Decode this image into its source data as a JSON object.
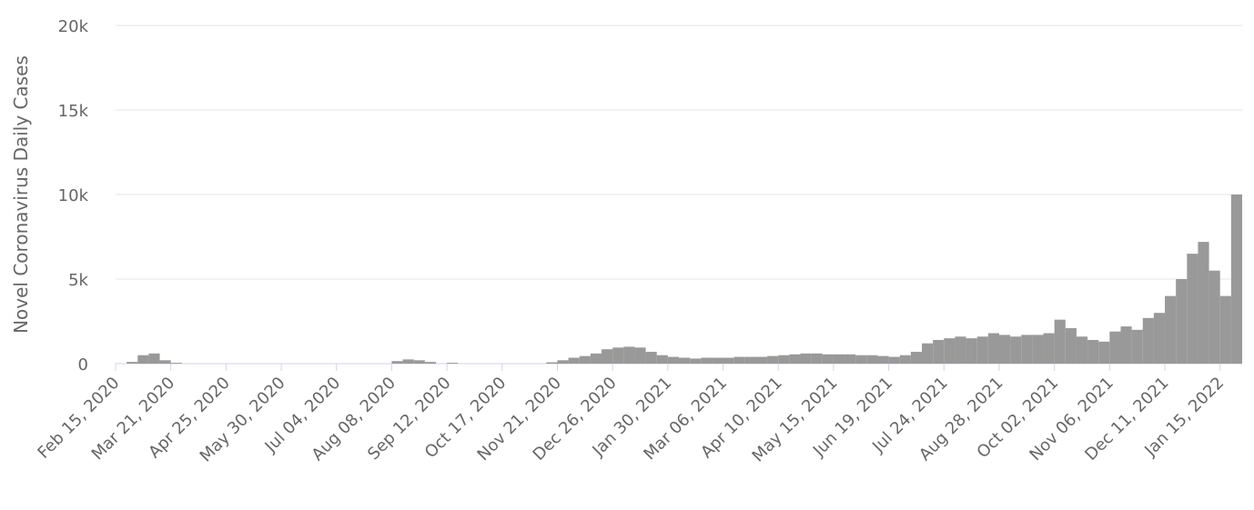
{
  "chart_data": {
    "type": "bar",
    "y_label": "Novel Coronavirus Daily Cases",
    "color": "#999999",
    "categories": [
      "Feb 15, 2020",
      null,
      null,
      null,
      null,
      "Mar 21, 2020",
      null,
      null,
      null,
      null,
      "Apr 25, 2020",
      null,
      null,
      null,
      null,
      "May 30, 2020",
      null,
      null,
      null,
      null,
      "Jul 04, 2020",
      null,
      null,
      null,
      null,
      "Aug 08, 2020",
      null,
      null,
      null,
      null,
      "Sep 12, 2020",
      null,
      null,
      null,
      null,
      "Oct 17, 2020",
      null,
      null,
      null,
      null,
      "Nov 21, 2020",
      null,
      null,
      null,
      null,
      "Dec 26, 2020",
      null,
      null,
      null,
      null,
      "Jan 30, 2021",
      null,
      null,
      null,
      null,
      "Mar 06, 2021",
      null,
      null,
      null,
      null,
      "Apr 10, 2021",
      null,
      null,
      null,
      null,
      "May 15, 2021",
      null,
      null,
      null,
      null,
      "Jun 19, 2021",
      null,
      null,
      null,
      null,
      "Jul 24, 2021",
      null,
      null,
      null,
      null,
      "Aug 28, 2021",
      null,
      null,
      null,
      null,
      "Oct 02, 2021",
      null,
      null,
      null,
      null,
      "Nov 06, 2021",
      null,
      null,
      null,
      null,
      "Dec 11, 2021",
      null,
      null,
      null,
      null,
      "Jan 15, 2022",
      null
    ],
    "values": [
      0,
      100,
      500,
      600,
      200,
      50,
      0,
      0,
      0,
      0,
      0,
      0,
      0,
      0,
      0,
      0,
      0,
      0,
      0,
      0,
      0,
      0,
      0,
      0,
      0,
      150,
      250,
      200,
      100,
      0,
      50,
      0,
      0,
      0,
      0,
      0,
      0,
      0,
      0,
      80,
      200,
      350,
      450,
      600,
      850,
      950,
      1000,
      950,
      700,
      500,
      400,
      350,
      300,
      350,
      350,
      350,
      400,
      400,
      400,
      450,
      500,
      550,
      600,
      600,
      550,
      550,
      550,
      500,
      500,
      450,
      400,
      500,
      700,
      1200,
      1400,
      1500,
      1600,
      1500,
      1600,
      1800,
      1700,
      1600,
      1700,
      1700,
      1800,
      2600,
      2100,
      1600,
      1400,
      1300,
      1900,
      2200,
      2000,
      2700,
      3000,
      4000,
      5000,
      6500,
      7200,
      5500,
      4000,
      10000
    ],
    "ylim": [
      0,
      20000
    ],
    "yticks": [
      0,
      {
        "value": 5000,
        "label": "5k"
      },
      {
        "value": 10000,
        "label": "10k"
      },
      {
        "value": 15000,
        "label": "15k"
      },
      {
        "value": 20000,
        "label": "20k"
      }
    ],
    "grid": true
  }
}
